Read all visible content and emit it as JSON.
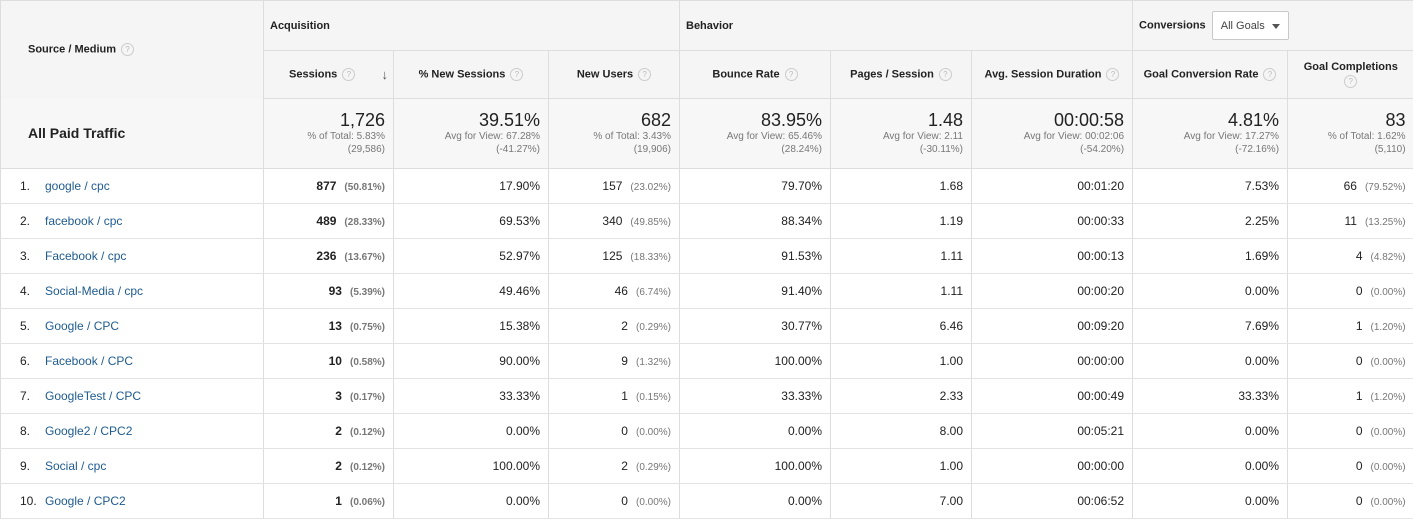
{
  "header": {
    "dimension_label": "Source / Medium",
    "groups": {
      "acquisition": "Acquisition",
      "behavior": "Behavior",
      "conversions": "Conversions"
    },
    "goal_select_value": "All Goals",
    "columns": {
      "sessions": "Sessions",
      "new_sessions": "% New Sessions",
      "new_users": "New Users",
      "bounce_rate": "Bounce Rate",
      "pages_session": "Pages / Session",
      "avg_duration": "Avg. Session Duration",
      "goal_conv_rate": "Goal Conversion Rate",
      "goal_completions": "Goal Completions"
    },
    "help_glyph": "?",
    "sort_glyph": "↓"
  },
  "totals": {
    "label": "All Paid Traffic",
    "sessions": {
      "value": "1,726",
      "line1": "% of Total: 5.83%",
      "line2": "(29,586)"
    },
    "new_sessions": {
      "value": "39.51%",
      "line1": "Avg for View: 67.28%",
      "line2": "(-41.27%)"
    },
    "new_users": {
      "value": "682",
      "line1": "% of Total: 3.43%",
      "line2": "(19,906)"
    },
    "bounce_rate": {
      "value": "83.95%",
      "line1": "Avg for View: 65.46%",
      "line2": "(28.24%)"
    },
    "pages_session": {
      "value": "1.48",
      "line1": "Avg for View: 2.11",
      "line2": "(-30.11%)"
    },
    "avg_duration": {
      "value": "00:00:58",
      "line1": "Avg for View: 00:02:06",
      "line2": "(-54.20%)"
    },
    "goal_conv_rate": {
      "value": "4.81%",
      "line1": "Avg for View: 17.27%",
      "line2": "(-72.16%)"
    },
    "goal_completions": {
      "value": "83",
      "line1": "% of Total: 1.62%",
      "line2": "(5,110)"
    }
  },
  "rows": [
    {
      "index": "1.",
      "source": "google / cpc",
      "sessions": "877",
      "sessions_pct": "(50.81%)",
      "new_sessions": "17.90%",
      "new_users": "157",
      "new_users_pct": "(23.02%)",
      "bounce_rate": "79.70%",
      "pages_session": "1.68",
      "avg_duration": "00:01:20",
      "goal_conv_rate": "7.53%",
      "goal_completions": "66",
      "goal_completions_pct": "(79.52%)"
    },
    {
      "index": "2.",
      "source": "facebook / cpc",
      "sessions": "489",
      "sessions_pct": "(28.33%)",
      "new_sessions": "69.53%",
      "new_users": "340",
      "new_users_pct": "(49.85%)",
      "bounce_rate": "88.34%",
      "pages_session": "1.19",
      "avg_duration": "00:00:33",
      "goal_conv_rate": "2.25%",
      "goal_completions": "11",
      "goal_completions_pct": "(13.25%)"
    },
    {
      "index": "3.",
      "source": "Facebook / cpc",
      "sessions": "236",
      "sessions_pct": "(13.67%)",
      "new_sessions": "52.97%",
      "new_users": "125",
      "new_users_pct": "(18.33%)",
      "bounce_rate": "91.53%",
      "pages_session": "1.11",
      "avg_duration": "00:00:13",
      "goal_conv_rate": "1.69%",
      "goal_completions": "4",
      "goal_completions_pct": "(4.82%)"
    },
    {
      "index": "4.",
      "source": "Social-Media / cpc",
      "sessions": "93",
      "sessions_pct": "(5.39%)",
      "new_sessions": "49.46%",
      "new_users": "46",
      "new_users_pct": "(6.74%)",
      "bounce_rate": "91.40%",
      "pages_session": "1.11",
      "avg_duration": "00:00:20",
      "goal_conv_rate": "0.00%",
      "goal_completions": "0",
      "goal_completions_pct": "(0.00%)"
    },
    {
      "index": "5.",
      "source": "Google / CPC",
      "sessions": "13",
      "sessions_pct": "(0.75%)",
      "new_sessions": "15.38%",
      "new_users": "2",
      "new_users_pct": "(0.29%)",
      "bounce_rate": "30.77%",
      "pages_session": "6.46",
      "avg_duration": "00:09:20",
      "goal_conv_rate": "7.69%",
      "goal_completions": "1",
      "goal_completions_pct": "(1.20%)"
    },
    {
      "index": "6.",
      "source": "Facebook / CPC",
      "sessions": "10",
      "sessions_pct": "(0.58%)",
      "new_sessions": "90.00%",
      "new_users": "9",
      "new_users_pct": "(1.32%)",
      "bounce_rate": "100.00%",
      "pages_session": "1.00",
      "avg_duration": "00:00:00",
      "goal_conv_rate": "0.00%",
      "goal_completions": "0",
      "goal_completions_pct": "(0.00%)"
    },
    {
      "index": "7.",
      "source": "GoogleTest / CPC",
      "sessions": "3",
      "sessions_pct": "(0.17%)",
      "new_sessions": "33.33%",
      "new_users": "1",
      "new_users_pct": "(0.15%)",
      "bounce_rate": "33.33%",
      "pages_session": "2.33",
      "avg_duration": "00:00:49",
      "goal_conv_rate": "33.33%",
      "goal_completions": "1",
      "goal_completions_pct": "(1.20%)"
    },
    {
      "index": "8.",
      "source": "Google2 / CPC2",
      "sessions": "2",
      "sessions_pct": "(0.12%)",
      "new_sessions": "0.00%",
      "new_users": "0",
      "new_users_pct": "(0.00%)",
      "bounce_rate": "0.00%",
      "pages_session": "8.00",
      "avg_duration": "00:05:21",
      "goal_conv_rate": "0.00%",
      "goal_completions": "0",
      "goal_completions_pct": "(0.00%)"
    },
    {
      "index": "9.",
      "source": "Social / cpc",
      "sessions": "2",
      "sessions_pct": "(0.12%)",
      "new_sessions": "100.00%",
      "new_users": "2",
      "new_users_pct": "(0.29%)",
      "bounce_rate": "100.00%",
      "pages_session": "1.00",
      "avg_duration": "00:00:00",
      "goal_conv_rate": "0.00%",
      "goal_completions": "0",
      "goal_completions_pct": "(0.00%)"
    },
    {
      "index": "10.",
      "source": "Google / CPC2",
      "sessions": "1",
      "sessions_pct": "(0.06%)",
      "new_sessions": "0.00%",
      "new_users": "0",
      "new_users_pct": "(0.00%)",
      "bounce_rate": "0.00%",
      "pages_session": "7.00",
      "avg_duration": "00:06:52",
      "goal_conv_rate": "0.00%",
      "goal_completions": "0",
      "goal_completions_pct": "(0.00%)"
    }
  ],
  "colors": {
    "link": "#1e5b8f",
    "header_bg": "#f5f5f5",
    "border": "#dddddd"
  }
}
